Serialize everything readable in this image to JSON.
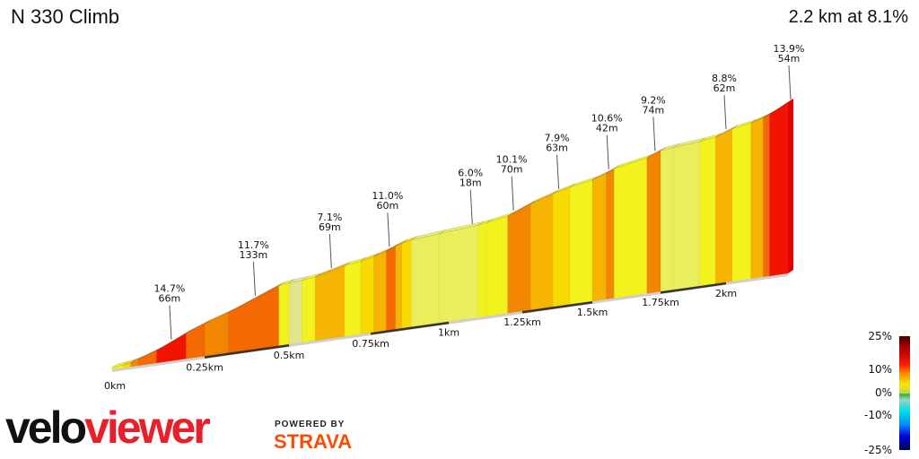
{
  "header": {
    "title": "N 330 Climb",
    "summary": "2.2 km at 8.1%"
  },
  "chart_data": {
    "type": "area",
    "title": "N 330 Climb",
    "distance_km": 2.2,
    "avg_gradient_pct": 8.1,
    "x_ticks": [
      "0km",
      "0.25km",
      "0.5km",
      "0.75km",
      "1km",
      "1.25km",
      "1.5km",
      "1.75km",
      "2km"
    ],
    "x_tick_values": [
      0,
      0.25,
      0.5,
      0.75,
      1,
      1.25,
      1.5,
      1.75,
      2
    ],
    "segments": [
      {
        "from": 0,
        "to": 0.03,
        "gradient": 3
      },
      {
        "from": 0.03,
        "to": 0.05,
        "gradient": 5
      },
      {
        "from": 0.05,
        "to": 0.07,
        "gradient": 9
      },
      {
        "from": 0.07,
        "to": 0.12,
        "gradient": 11
      },
      {
        "from": 0.12,
        "to": 0.2,
        "gradient": 14.7
      },
      {
        "from": 0.2,
        "to": 0.25,
        "gradient": 12
      },
      {
        "from": 0.25,
        "to": 0.32,
        "gradient": 9.5
      },
      {
        "from": 0.32,
        "to": 0.47,
        "gradient": 11.7
      },
      {
        "from": 0.47,
        "to": 0.5,
        "gradient": 4
      },
      {
        "from": 0.5,
        "to": 0.54,
        "gradient": 1.5
      },
      {
        "from": 0.54,
        "to": 0.58,
        "gradient": 3
      },
      {
        "from": 0.58,
        "to": 0.67,
        "gradient": 7.1
      },
      {
        "from": 0.67,
        "to": 0.72,
        "gradient": 4
      },
      {
        "from": 0.72,
        "to": 0.76,
        "gradient": 6
      },
      {
        "from": 0.76,
        "to": 0.8,
        "gradient": 8
      },
      {
        "from": 0.8,
        "to": 0.83,
        "gradient": 11
      },
      {
        "from": 0.83,
        "to": 0.85,
        "gradient": 8.5
      },
      {
        "from": 0.85,
        "to": 0.88,
        "gradient": 5
      },
      {
        "from": 0.88,
        "to": 0.97,
        "gradient": 2.5
      },
      {
        "from": 0.97,
        "to": 1.1,
        "gradient": 2
      },
      {
        "from": 1.1,
        "to": 1.13,
        "gradient": 3.5
      },
      {
        "from": 1.13,
        "to": 1.2,
        "gradient": 4.5
      },
      {
        "from": 1.2,
        "to": 1.28,
        "gradient": 10.1
      },
      {
        "from": 1.28,
        "to": 1.36,
        "gradient": 7.5
      },
      {
        "from": 1.36,
        "to": 1.42,
        "gradient": 6
      },
      {
        "from": 1.42,
        "to": 1.5,
        "gradient": 4.5
      },
      {
        "from": 1.5,
        "to": 1.55,
        "gradient": 8
      },
      {
        "from": 1.55,
        "to": 1.58,
        "gradient": 10.6
      },
      {
        "from": 1.58,
        "to": 1.7,
        "gradient": 4.5
      },
      {
        "from": 1.7,
        "to": 1.75,
        "gradient": 9.2
      },
      {
        "from": 1.75,
        "to": 1.8,
        "gradient": 2.5
      },
      {
        "from": 1.8,
        "to": 1.9,
        "gradient": 2
      },
      {
        "from": 1.9,
        "to": 1.96,
        "gradient": 3
      },
      {
        "from": 1.96,
        "to": 2.02,
        "gradient": 8.8
      },
      {
        "from": 2.02,
        "to": 2.08,
        "gradient": 4.5
      },
      {
        "from": 2.08,
        "to": 2.12,
        "gradient": 8
      },
      {
        "from": 2.12,
        "to": 2.14,
        "gradient": 11
      },
      {
        "from": 2.14,
        "to": 2.2,
        "gradient": 13.9
      }
    ],
    "annotations": [
      {
        "at": 0.16,
        "gradient": "14.7%",
        "length": "66m"
      },
      {
        "at": 0.4,
        "gradient": "11.7%",
        "length": "133m"
      },
      {
        "at": 0.63,
        "gradient": "7.1%",
        "length": "69m"
      },
      {
        "at": 0.81,
        "gradient": "11.0%",
        "length": "60m"
      },
      {
        "at": 1.08,
        "gradient": "6.0%",
        "length": "18m"
      },
      {
        "at": 1.22,
        "gradient": "10.1%",
        "length": "70m"
      },
      {
        "at": 1.38,
        "gradient": "7.9%",
        "length": "63m"
      },
      {
        "at": 1.56,
        "gradient": "10.6%",
        "length": "42m"
      },
      {
        "at": 1.73,
        "gradient": "9.2%",
        "length": "74m"
      },
      {
        "at": 2.0,
        "gradient": "8.8%",
        "length": "62m"
      },
      {
        "at": 2.2,
        "gradient": "13.9%",
        "length": "54m"
      }
    ],
    "legend": {
      "labels": [
        "25%",
        "10%",
        "0%",
        "-10%",
        "-25%"
      ]
    }
  },
  "branding": {
    "logo_a": "velo",
    "logo_b": "viewer",
    "powered": "POWERED BY",
    "strava": "STRAVA"
  }
}
